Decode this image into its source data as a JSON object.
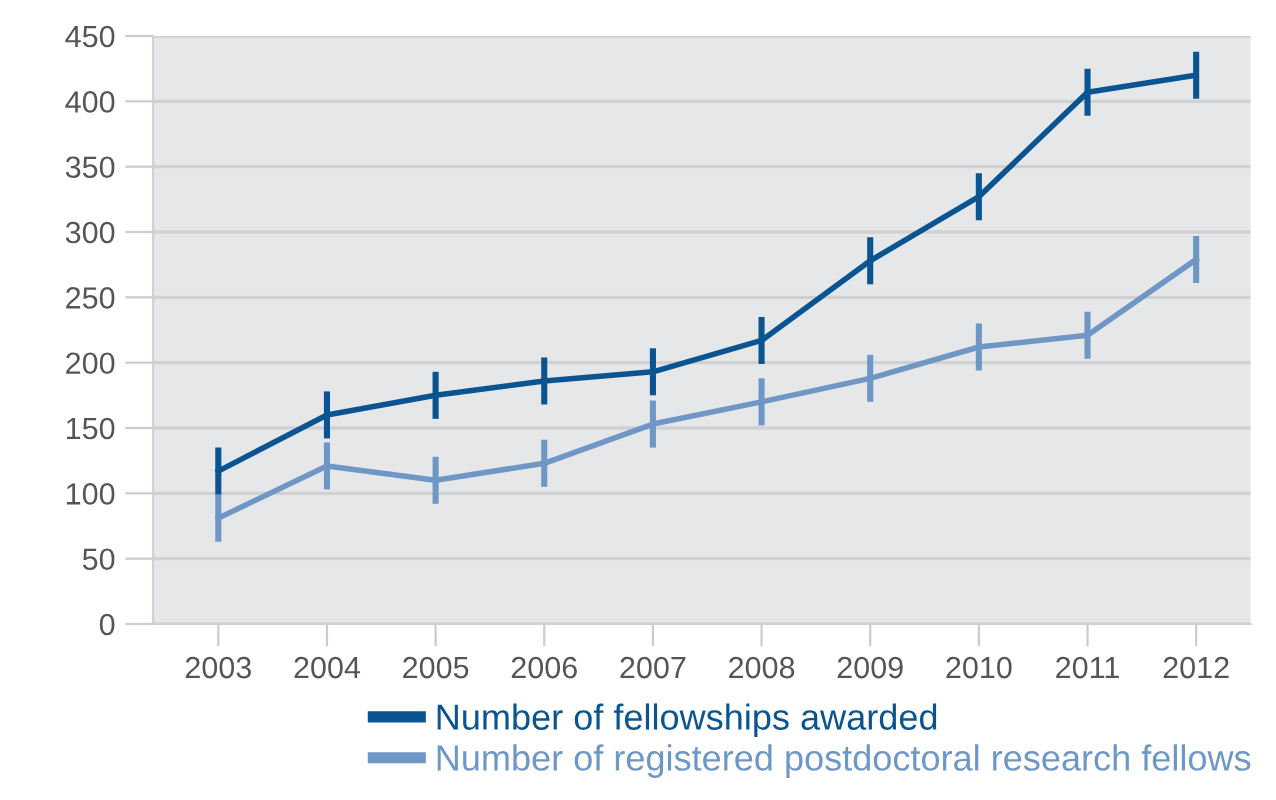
{
  "chart_data": {
    "type": "line",
    "categories": [
      "2003",
      "2004",
      "2005",
      "2006",
      "2007",
      "2008",
      "2009",
      "2010",
      "2011",
      "2012"
    ],
    "series": [
      {
        "name": "Number of fellowships awarded",
        "color": "#0a5591",
        "values": [
          117,
          160,
          175,
          186,
          193,
          217,
          278,
          327,
          407,
          420
        ],
        "errors": [
          18,
          18,
          18,
          18,
          18,
          18,
          18,
          18,
          18,
          18
        ]
      },
      {
        "name": "Number of registered postdoctoral research fellows",
        "color": "#6f97c6",
        "values": [
          81,
          121,
          110,
          123,
          153,
          170,
          188,
          212,
          221,
          279
        ],
        "errors": [
          18,
          18,
          18,
          18,
          18,
          18,
          18,
          18,
          18,
          18
        ]
      }
    ],
    "ylim": [
      0,
      450
    ],
    "yticks": [
      0,
      50,
      100,
      150,
      200,
      250,
      300,
      350,
      400,
      450
    ],
    "grid": "y",
    "legend": "bottom right",
    "line_style": "solid"
  }
}
